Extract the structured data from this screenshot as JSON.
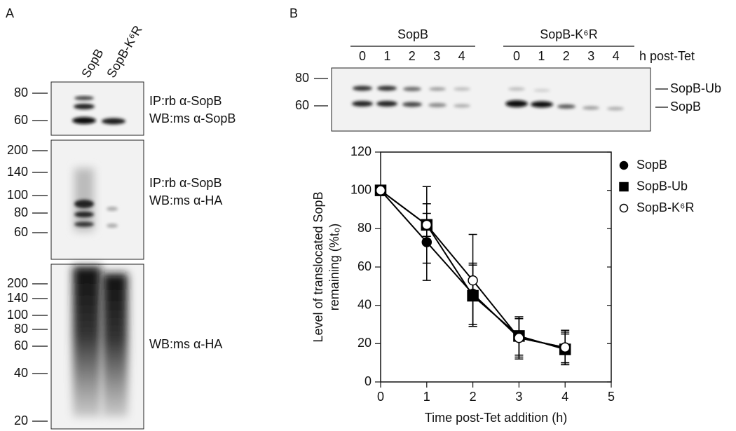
{
  "panel_a": {
    "label": "A",
    "lanes": [
      "SopB",
      "SopB-K⁶R"
    ],
    "blots": [
      {
        "markers": [
          80,
          60
        ],
        "annotation": [
          "IP:rb α-SopB",
          "WB:ms α-SopB"
        ]
      },
      {
        "markers": [
          200,
          140,
          100,
          80,
          60
        ],
        "annotation": [
          "IP:rb α-SopB",
          "WB:ms α-HA"
        ]
      },
      {
        "markers": [
          200,
          140,
          100,
          80,
          60,
          40,
          20
        ],
        "annotation": [
          "WB:ms α-HA"
        ]
      }
    ]
  },
  "panel_b": {
    "label": "B",
    "groups": [
      "SopB",
      "SopB-K⁶R"
    ],
    "timepoints": [
      "0",
      "1",
      "2",
      "3",
      "4"
    ],
    "time_unit": "h post-Tet",
    "markers": [
      80,
      60
    ],
    "band_labels": [
      "SopB-Ub",
      "SopB"
    ]
  },
  "chart_data": {
    "type": "line",
    "x": [
      0,
      1,
      2,
      3,
      4
    ],
    "xlim": [
      0,
      5
    ],
    "xticks": [
      0,
      1,
      2,
      3,
      4,
      5
    ],
    "ylim": [
      0,
      120
    ],
    "yticks": [
      0,
      20,
      40,
      60,
      80,
      100,
      120
    ],
    "xlabel": "Time post-Tet addition (h)",
    "ylabel": [
      "Level of translocated SopB",
      "remaining (%t₀)"
    ],
    "legend": "right",
    "series": [
      {
        "name": "SopB",
        "color": "#000000",
        "marker": "filled-circle",
        "values": [
          100,
          73,
          46,
          23,
          18
        ],
        "errors": [
          0,
          20,
          16,
          10,
          8
        ]
      },
      {
        "name": "SopB-Ub",
        "color": "#000000",
        "marker": "filled-square",
        "values": [
          100,
          82,
          45,
          24,
          17
        ],
        "errors": [
          0,
          20,
          16,
          10,
          8
        ]
      },
      {
        "name": "SopB-K⁶R",
        "color": "#000000",
        "marker": "open-circle",
        "values": [
          100,
          82,
          53,
          23,
          18
        ],
        "errors": [
          0,
          6,
          24,
          11,
          9
        ]
      }
    ]
  }
}
